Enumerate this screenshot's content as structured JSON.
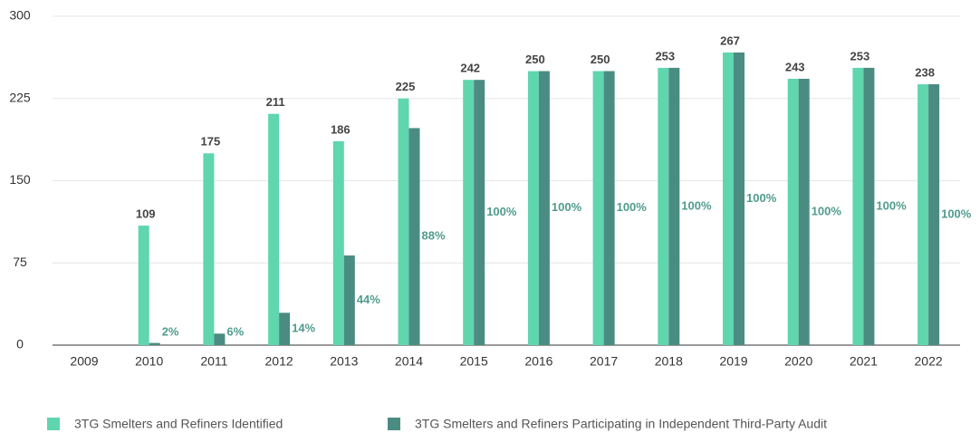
{
  "chart_data": {
    "type": "bar",
    "categories": [
      "2009",
      "2010",
      "2011",
      "2012",
      "2013",
      "2014",
      "2015",
      "2016",
      "2017",
      "2018",
      "2019",
      "2020",
      "2021",
      "2022"
    ],
    "series": [
      {
        "name": "3TG Smelters and Refiners Identified",
        "color": "#5fd6ad",
        "values": [
          null,
          109,
          175,
          211,
          186,
          225,
          242,
          250,
          250,
          253,
          267,
          243,
          253,
          238
        ]
      },
      {
        "name": "3TG Smelters and Refiners Participating in Independent Third-Party Audit",
        "color": "#4b8c82",
        "values": [
          null,
          2,
          10.5,
          29.5,
          81.8,
          198,
          242,
          250,
          250,
          253,
          267,
          243,
          253,
          238
        ],
        "percent_labels": [
          null,
          "2%",
          "6%",
          "14%",
          "44%",
          "88%",
          "100%",
          "100%",
          "100%",
          "100%",
          "100%",
          "100%",
          "100%",
          "100%"
        ]
      }
    ],
    "ylim": [
      0,
      300
    ],
    "yticks": [
      0,
      75,
      150,
      225,
      300
    ],
    "grid": true,
    "legend": "bottom"
  }
}
